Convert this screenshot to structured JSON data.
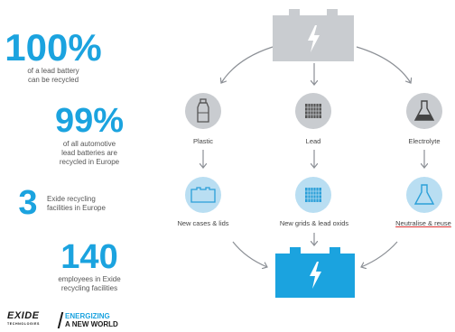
{
  "stats": [
    {
      "number": "100%",
      "line1": "of a lead battery",
      "line2": "can be recycled"
    },
    {
      "number": "99%",
      "line1": "of all automotive",
      "line2": "lead batteries are",
      "line3": "recycled in Europe"
    },
    {
      "number": "3",
      "line1": "Exide recycling",
      "line2": "facilities in Europe"
    },
    {
      "number": "140",
      "line1": "employees in Exide",
      "line2": "recycling facilities"
    }
  ],
  "brand": {
    "logo": "EXIDE",
    "logo_sub": "TECHNOLOGIES",
    "tagline1": "ENERGIZING",
    "tagline2": "A NEW WORLD"
  },
  "diagram": {
    "components": [
      {
        "label": "Plastic",
        "icon": "bottle-icon"
      },
      {
        "label": "Lead",
        "icon": "lead-grid-icon"
      },
      {
        "label": "Electrolyte",
        "icon": "flask-icon"
      }
    ],
    "products": [
      {
        "label": "New cases & lids",
        "icon": "battery-case-icon"
      },
      {
        "label": "New grids & lead oxids",
        "icon": "new-grid-icon"
      },
      {
        "label": "Neutralise & reuse",
        "icon": "flask-reuse-icon"
      }
    ],
    "old_battery_icon": "old-battery-icon",
    "new_battery_icon": "new-battery-icon"
  },
  "colors": {
    "accent": "#1ba3df",
    "grey_node": "#c9ccd0",
    "blue_node": "#b9def2",
    "arrow": "#8c9096"
  }
}
